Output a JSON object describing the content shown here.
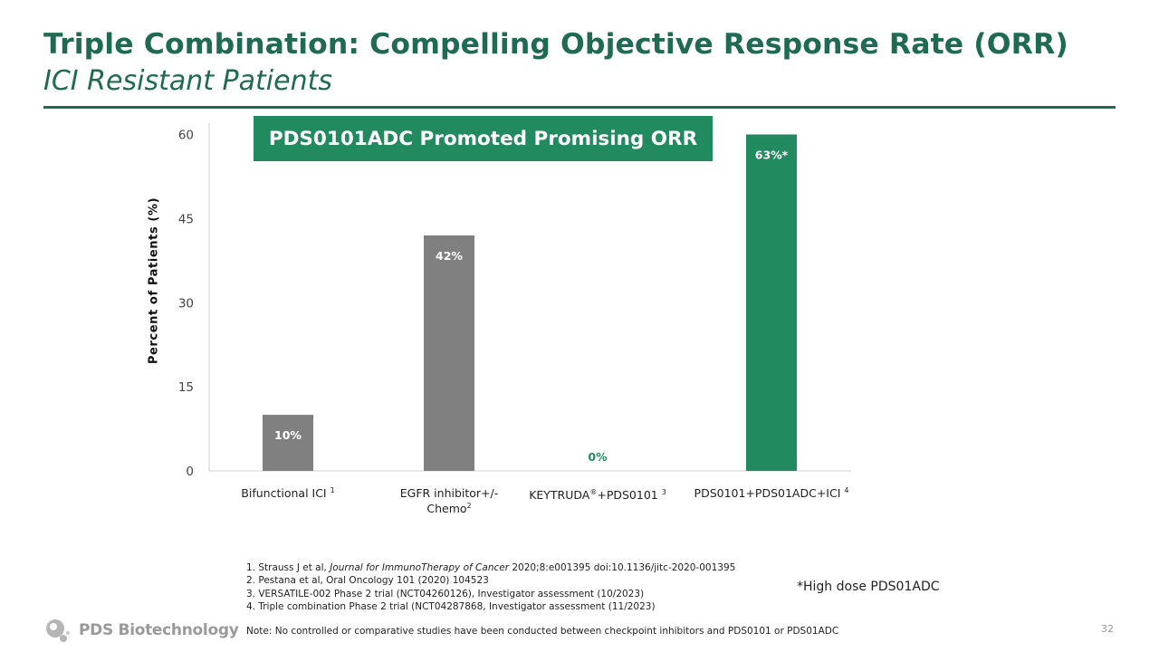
{
  "slide": {
    "title": "Triple Combination: Compelling Objective Response Rate (ORR)",
    "subtitle": "ICI Resistant Patients",
    "banner": "PDS0101ADC Promoted Promising ORR",
    "high_dose_note": "*High dose PDS01ADC",
    "note": "Note: No controlled or comparative studies have been conducted between checkpoint inhibitors and PDS0101 or PDS01ADC",
    "page_number": "32",
    "logo_text": "PDS Biotechnology",
    "colors": {
      "accent": "#1f6a52",
      "banner": "#228a5f",
      "bar_gray": "#808080",
      "bar_green": "#228a5f"
    }
  },
  "footnotes": [
    {
      "prefix": "1. Strauss J et al, ",
      "journal": "Journal for ImmunoTherapy of Cancer",
      "suffix": " 2020;8:e001395 doi:10.1136/jitc-2020-001395"
    },
    {
      "text": "2. Pestana et al, Oral Oncology 101 (2020) 104523"
    },
    {
      "text": "3. VERSATILE-002 Phase 2 trial (NCT04260126), Investigator assessment  (10/2023)"
    },
    {
      "text": "4. Triple  combination Phase 2 trial (NCT04287868, Investigator assessment  (11/2023)"
    }
  ],
  "chart_data": {
    "type": "bar",
    "title": "PDS0101ADC Promoted Promising ORR",
    "xlabel": "",
    "ylabel": "Percent of Patients (%)",
    "ylim": [
      0,
      60
    ],
    "yticks": [
      0,
      15,
      30,
      45,
      60
    ],
    "grid": false,
    "categories": [
      {
        "main": "Bifunctional ICI ",
        "sup": "1",
        "line2": ""
      },
      {
        "main": "EGFR inhibitor+/-",
        "sup": "",
        "line2": "Chemo",
        "line2_sup": "2"
      },
      {
        "main": "KEYTRUDA",
        "reg": "®",
        "mid": "+PDS0101 ",
        "sup": "3",
        "line2": ""
      },
      {
        "main": "PDS0101+PDS01ADC+ICI ",
        "sup": "4",
        "line2": ""
      }
    ],
    "category_names": [
      "Bifunctional ICI 1",
      "EGFR inhibitor+/- Chemo2",
      "KEYTRUDA®+PDS0101 3",
      "PDS0101+PDS01ADC+ICI 4"
    ],
    "values": [
      10,
      42,
      0,
      63
    ],
    "data_labels": [
      "10%",
      "42%",
      "0%",
      "63%*"
    ],
    "bar_colors": [
      "#808080",
      "#808080",
      "#228a5f",
      "#228a5f"
    ],
    "label_colors": [
      "#ffffff",
      "#ffffff",
      "#228a5f",
      "#ffffff"
    ]
  }
}
